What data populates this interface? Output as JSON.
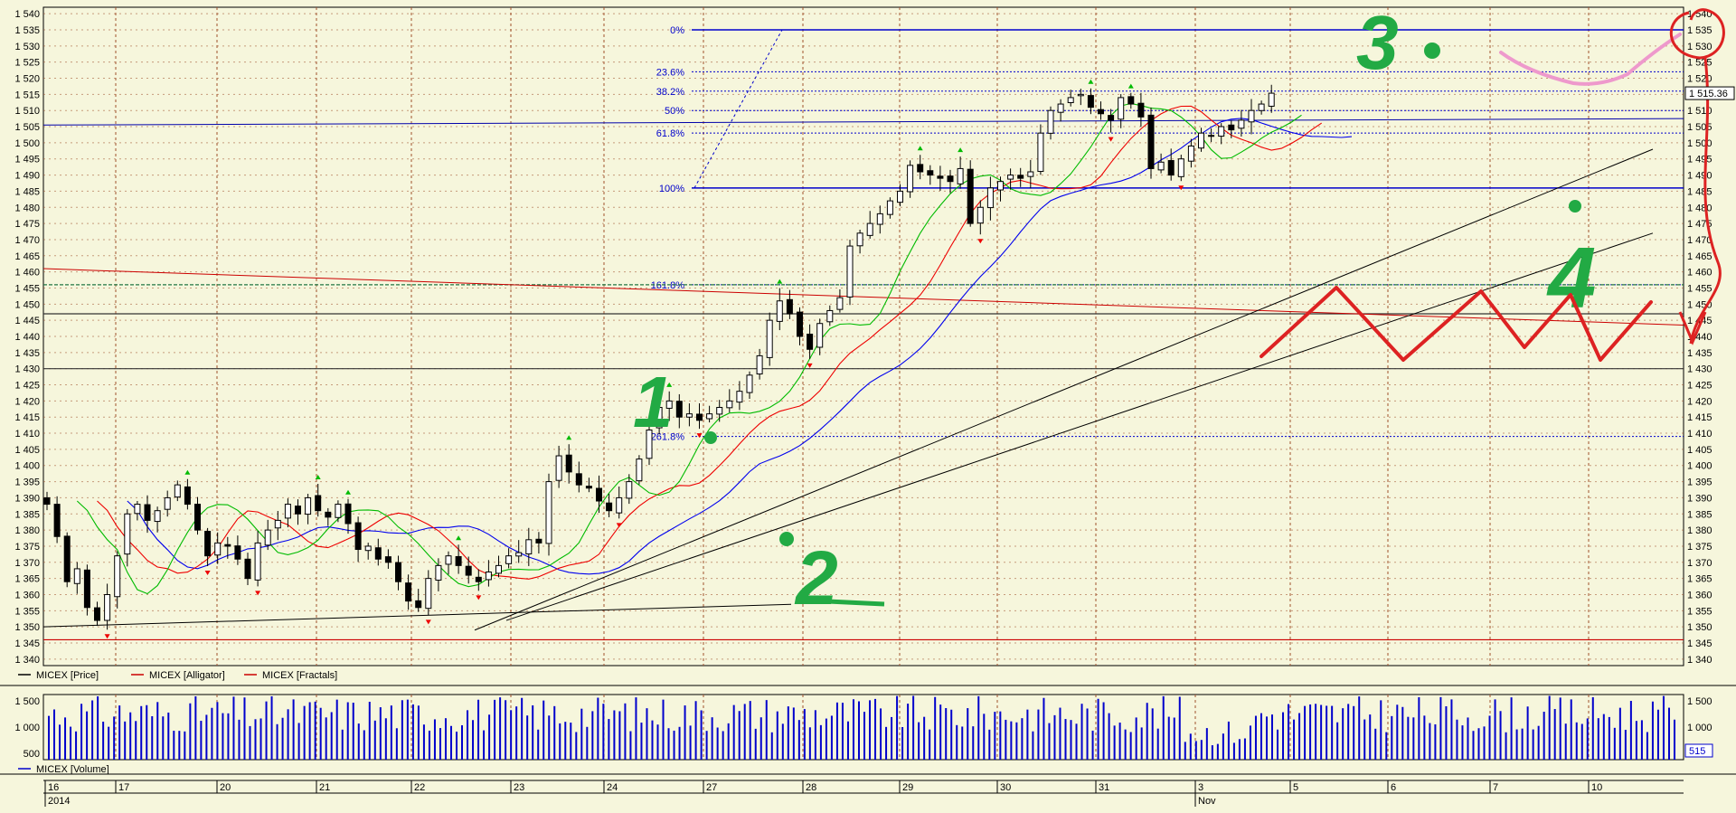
{
  "chart_data": [
    {
      "type": "candlestick",
      "panel": "price",
      "ylim": [
        1338,
        1542
      ],
      "yticks": [
        1340,
        1345,
        1350,
        1355,
        1360,
        1365,
        1370,
        1375,
        1380,
        1385,
        1390,
        1395,
        1400,
        1405,
        1410,
        1415,
        1420,
        1425,
        1430,
        1435,
        1440,
        1445,
        1450,
        1455,
        1460,
        1465,
        1470,
        1475,
        1480,
        1485,
        1490,
        1495,
        1500,
        1505,
        1510,
        1515,
        1520,
        1525,
        1530,
        1535,
        1540
      ],
      "ytick_labels": [
        "1 340",
        "1 345",
        "1 350",
        "1 355",
        "1 360",
        "1 365",
        "1 370",
        "1 375",
        "1 380",
        "1 385",
        "1 390",
        "1 395",
        "1 400",
        "1 405",
        "1 410",
        "1 415",
        "1 420",
        "1 425",
        "1 430",
        "1 435",
        "1 440",
        "1 445",
        "1 450",
        "1 455",
        "1 460",
        "1 465",
        "1 470",
        "1 475",
        "1 480",
        "1 485",
        "1 490",
        "1 495",
        "1 500",
        "1 505",
        "1 510",
        "1 515",
        "1 520",
        "1 525",
        "1 530",
        "1 535",
        "1 540"
      ],
      "legend": [
        {
          "label": "MICEX [Price]",
          "color": "#000000"
        },
        {
          "label": "MICEX [Alligator]",
          "color": "#cc0000"
        },
        {
          "label": "MICEX [Fractals]",
          "color": "#cc0000"
        }
      ],
      "last_price_label": "1 515.36",
      "last_price": 1515.36,
      "anchors": [
        1388,
        1378,
        1364,
        1368,
        1356,
        1352,
        1360,
        1372,
        1385,
        1388,
        1383,
        1386,
        1390,
        1394,
        1388,
        1380,
        1372,
        1376,
        1375,
        1371,
        1365,
        1376,
        1380,
        1383,
        1388,
        1385,
        1390,
        1386,
        1384,
        1388,
        1382,
        1374,
        1375,
        1371,
        1370,
        1364,
        1358,
        1356,
        1365,
        1369,
        1372,
        1369,
        1366,
        1364,
        1367,
        1369,
        1372,
        1373,
        1377,
        1376,
        1395,
        1403,
        1398,
        1394,
        1393,
        1389,
        1386,
        1390,
        1395,
        1402,
        1411,
        1418,
        1420,
        1415,
        1416,
        1414,
        1416,
        1418,
        1420,
        1423,
        1428,
        1434,
        1445,
        1451,
        1447,
        1440,
        1436,
        1444,
        1448,
        1452,
        1468,
        1472,
        1475,
        1478,
        1482,
        1485,
        1493,
        1491,
        1490,
        1489,
        1488,
        1492,
        1475,
        1480,
        1486,
        1488,
        1490,
        1489,
        1491,
        1503,
        1510,
        1512,
        1514,
        1515,
        1511,
        1509,
        1507,
        1514,
        1512,
        1508,
        1492,
        1494,
        1490,
        1495,
        1499,
        1503,
        1502,
        1505,
        1504,
        1507,
        1510,
        1512,
        1515.36
      ],
      "fib_levels": [
        {
          "label": "0%",
          "value": 1535
        },
        {
          "label": "23.6%",
          "value": 1522
        },
        {
          "label": "38.2%",
          "value": 1516
        },
        {
          "label": "50%",
          "value": 1510
        },
        {
          "label": "61.8%",
          "value": 1503
        },
        {
          "label": "100%",
          "value": 1486
        },
        {
          "label": "161.8%",
          "value": 1456
        },
        {
          "label": "261.8%",
          "value": 1409
        }
      ],
      "horizontal_lines": [
        1456,
        1447,
        1430,
        1346
      ],
      "annotations": [
        "1",
        "2",
        "3",
        "4"
      ]
    },
    {
      "type": "bar",
      "panel": "volume",
      "ylim": [
        380,
        1620
      ],
      "yticks": [
        500,
        1000,
        1500
      ],
      "ytick_labels": [
        "500",
        "1 000",
        "1 500"
      ],
      "legend": [
        {
          "label": "MICEX [Volume]",
          "color": "#0000cc"
        }
      ],
      "last_value_label": "515",
      "bar_count": 300,
      "range": [
        900,
        1600
      ]
    }
  ],
  "x_axis": {
    "labels": [
      "16",
      "17",
      "20",
      "21",
      "22",
      "23",
      "24",
      "27",
      "28",
      "29",
      "30",
      "31",
      "3",
      "5",
      "6",
      "7",
      "10"
    ],
    "sublabels": [
      "2014",
      "Nov"
    ]
  },
  "colors": {
    "background": "#f6f6dc",
    "grid": "#a0522d",
    "candle": "#000000",
    "alligator_jaw": "#0000ee",
    "alligator_teeth": "#ee0000",
    "alligator_lips": "#00bb00",
    "fractal_up": "#00bb00",
    "fractal_down": "#ee0000",
    "fib": "#0000cc",
    "volume": "#0000cc",
    "annotation_green": "#22aa44",
    "annotation_red": "#dd2222",
    "annotation_pink": "#ee99cc"
  }
}
